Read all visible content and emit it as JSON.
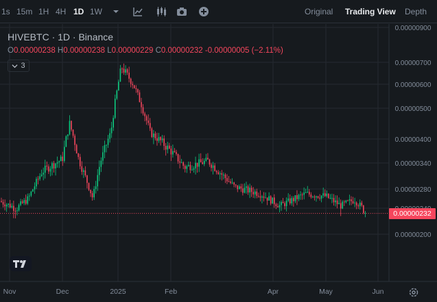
{
  "toolbar": {
    "intervals": [
      {
        "label": "1s"
      },
      {
        "label": "15m"
      },
      {
        "label": "1H"
      },
      {
        "label": "4H"
      },
      {
        "label": "1D"
      },
      {
        "label": "1W"
      }
    ],
    "active_interval": "1D",
    "icons": [
      "chevron-down-icon",
      "indicator-icon",
      "candle-type-icon",
      "camera-icon",
      "add-icon"
    ],
    "views": {
      "original": "Original",
      "tradingview": "Trading View",
      "depth": "Depth"
    },
    "active_view": "Trading View"
  },
  "legend": {
    "symbol": "HIVEBTC · 1D · Binance",
    "open_key": "O",
    "open": "0.00000238",
    "high_key": "H",
    "high": "0.00000238",
    "low_key": "L",
    "low": "0.00000229",
    "close_key": "C",
    "close": "0.00000232",
    "change": "-0.00000005 (−2.11%)",
    "indicator_count": "3"
  },
  "last_price_label": "0.00000232",
  "colors": {
    "up": "#0ecb81",
    "down": "#f6465d",
    "background": "#161a1e",
    "grid": "#2b3139"
  },
  "chart_data": {
    "type": "candlestick",
    "y_ticks": [
      "0.00000900",
      "0.00000700",
      "0.00000600",
      "0.00000500",
      "0.00000400",
      "0.00000340",
      "0.00000280",
      "0.00000240",
      "0.00000200"
    ],
    "x_ticks": [
      "Nov",
      "Dec",
      "2025",
      "Feb",
      "Apr",
      "May",
      "Jun"
    ],
    "last_price": 2.32e-06,
    "trend_points": [
      {
        "date": "Oct 25",
        "price": 2.55e-06
      },
      {
        "date": "Nov 5",
        "price": 2.4e-06
      },
      {
        "date": "Nov 12",
        "price": 2.6e-06
      },
      {
        "date": "Nov 20",
        "price": 3.2e-06
      },
      {
        "date": "Dec 1",
        "price": 3.5e-06
      },
      {
        "date": "Dec 5",
        "price": 4.5e-06
      },
      {
        "date": "Dec 10",
        "price": 3.5e-06
      },
      {
        "date": "Dec 18",
        "price": 2.6e-06
      },
      {
        "date": "Dec 22",
        "price": 3.4e-06
      },
      {
        "date": "Dec 28",
        "price": 4.2e-06
      },
      {
        "date": "Jan 3",
        "price": 6.8e-06
      },
      {
        "date": "Jan 10",
        "price": 6e-06
      },
      {
        "date": "Jan 20",
        "price": 4.2e-06
      },
      {
        "date": "Feb 1",
        "price": 3.7e-06
      },
      {
        "date": "Feb 10",
        "price": 3.3e-06
      },
      {
        "date": "Feb 25",
        "price": 3.45e-06
      },
      {
        "date": "Mar 10",
        "price": 2.85e-06
      },
      {
        "date": "Mar 25",
        "price": 2.7e-06
      },
      {
        "date": "Apr 5",
        "price": 2.45e-06
      },
      {
        "date": "Apr 20",
        "price": 2.7e-06
      },
      {
        "date": "May 1",
        "price": 2.65e-06
      },
      {
        "date": "May 10",
        "price": 2.45e-06
      },
      {
        "date": "May 18",
        "price": 2.58e-06
      },
      {
        "date": "May 25",
        "price": 2.32e-06
      }
    ]
  }
}
